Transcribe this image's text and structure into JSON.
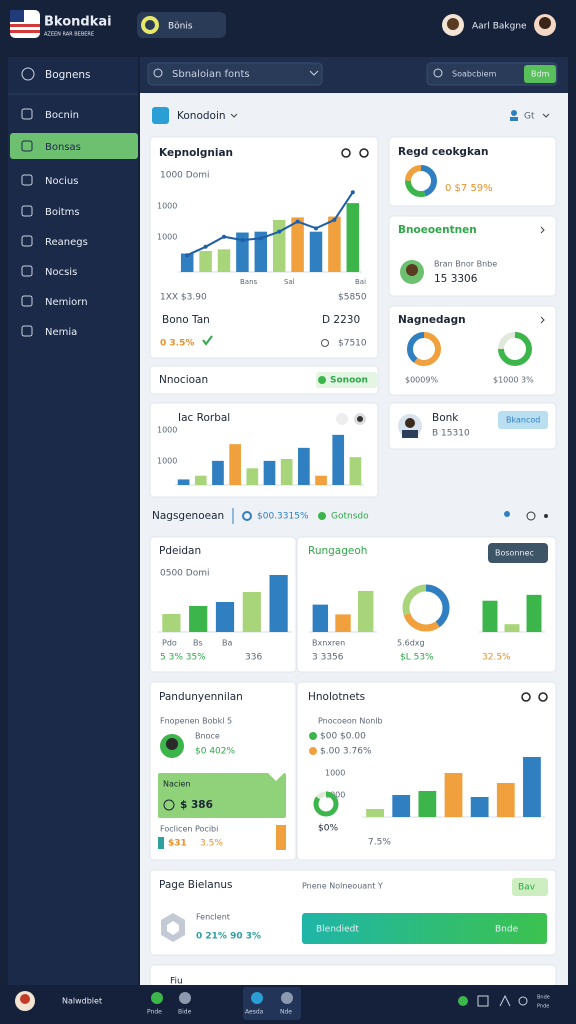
{
  "header": {
    "brand": "Bkondkai",
    "brand_sub": "AZEEN RAR BEBERE",
    "tab": "Bönis",
    "user": "Aarl Bakgne"
  },
  "sidebar": {
    "top": "Bognens",
    "items": [
      "Bocnin",
      "Bonsas",
      "Nocius",
      "Boitms",
      "Reanegs",
      "Nocsis",
      "Nemiorn",
      "Nemia"
    ]
  },
  "search": {
    "placeholder": "Sbnaloian fonts",
    "right_placeholder": "Soabcbiem",
    "button": "Bdm"
  },
  "toolbar": {
    "title": "Konodoin",
    "right": "Gt"
  },
  "card1": {
    "title": "Kepnolgnian",
    "subtitle": "1000 Domi",
    "ticks": [
      "1000",
      "1000"
    ],
    "xlabels": [
      "Bans",
      "Sal",
      "Bai"
    ],
    "rows": [
      [
        "1XX $3.90",
        "$5850"
      ],
      [
        "Bono Tan",
        "D 2230"
      ],
      [
        "0 3.5%",
        "$7510"
      ]
    ]
  },
  "regd": {
    "title": "Regd ceokgkan",
    "value": "0 $7 59%"
  },
  "bnoe": {
    "title": "Bnoeoentnen",
    "name": "Bran Bnor Bnbe",
    "value": "15 3306"
  },
  "nagn": {
    "title": "Nagnedagn",
    "labels": [
      "$0009%",
      "$1000 3%"
    ]
  },
  "nnoc": {
    "title": "Nnocioan",
    "badge": "Sonoon"
  },
  "rorbal": {
    "title": "Iac Rorbal",
    "ticks": [
      "1000",
      "1000"
    ]
  },
  "bonk": {
    "name": "Bonk",
    "value": "B 15310",
    "button": "Bkancod"
  },
  "section": {
    "title": "Nagsgenoean",
    "value": "$00.3315%",
    "tag": "Gotnsdo"
  },
  "pdeidan": {
    "title": "Pdeidan",
    "subtitle": "0500 Domi",
    "xlabels": [
      "Pdo",
      "Bs",
      "Ba"
    ],
    "footer": [
      "5 3% 35%",
      "336"
    ]
  },
  "rung": {
    "title": "Rungageoh",
    "button": "Bosonnec",
    "labels": [
      "Bxnxren",
      "3 3356",
      "5.6dxg",
      "$L 53%",
      "32.5%"
    ]
  },
  "pand": {
    "title": "Pandunyennilan",
    "sub": "Fnopenen  Bobkl 5",
    "person": "Bnoce",
    "change": "$0 402%",
    "box_title": "Nacien",
    "box_value": "$ 386",
    "foot_label": "Foclicen   Pocibi",
    "foot": [
      "$31",
      "3.5%"
    ]
  },
  "hnolo": {
    "title": "Hnolotnets",
    "sub": "Pnocoeon   Nonlb",
    "rows": [
      "$00 $0.00",
      "$.00 3.76%"
    ],
    "ticks": [
      "1000",
      "1000"
    ],
    "ring_label": "$0%",
    "foot": "7.5%"
  },
  "bielanus": {
    "title": "Page Bielanus",
    "sub": "Pnene Nolneouant Y",
    "button": "Bav",
    "label": "Fenclent",
    "value": "0 21% 90 3%",
    "bar": [
      "Blendiedt",
      "Bnde"
    ],
    "next": "Fiu"
  },
  "footer": {
    "user": "Nalwdblet",
    "tabs": [
      "Pnde",
      "Bide",
      "Aesda",
      "Nde"
    ],
    "right": [
      "Bnde",
      "Pnde"
    ]
  },
  "charts": {
    "revenue": {
      "ylim": [
        0,
        100
      ],
      "values": [
        22,
        25,
        27,
        47,
        48,
        62,
        65,
        48,
        66,
        82
      ],
      "colors": [
        "#2f7fc1",
        "#a8d57a",
        "#a8d57a",
        "#2f7fc1",
        "#2f7fc1",
        "#a8d57a",
        "#f0a03c",
        "#2f7fc1",
        "#f0a03c",
        "#3cb54a"
      ],
      "line": [
        20,
        30,
        42,
        38,
        40,
        48,
        60,
        52,
        62,
        95
      ],
      "line_color": "#1f5fa8"
    },
    "rorbal": {
      "ylim": [
        0,
        70
      ],
      "values": [
        6,
        10,
        26,
        44,
        18,
        26,
        28,
        40,
        10,
        54,
        30
      ],
      "colors": [
        "#2f7fc1",
        "#a8d57a",
        "#2f7fc1",
        "#f0a03c",
        "#a8d57a",
        "#2f7fc1",
        "#a8d57a",
        "#2f7fc1",
        "#f0a03c",
        "#2f7fc1",
        "#a8d57a"
      ]
    },
    "pdeidan": {
      "ylim": [
        0,
        60
      ],
      "values": [
        18,
        26,
        30,
        40,
        57
      ],
      "colors": [
        "#a8d57a",
        "#3cb54a",
        "#2f7fc1",
        "#a8d57a",
        "#2f7fc1"
      ]
    },
    "rung_a": {
      "ylim": [
        0,
        45
      ],
      "values": [
        28,
        18,
        42
      ],
      "colors": [
        "#2f7fc1",
        "#f0a03c",
        "#a8d57a"
      ]
    },
    "rung_b": {
      "ylim": [
        0,
        45
      ],
      "values": [
        32,
        8,
        38
      ],
      "colors": [
        "#3cb54a",
        "#a8d57a",
        "#3cb54a"
      ]
    },
    "hnolo": {
      "ylim": [
        0,
        65
      ],
      "values": [
        8,
        22,
        26,
        44,
        20,
        34,
        60
      ],
      "colors": [
        "#a8d57a",
        "#2f7fc1",
        "#3cb54a",
        "#f0a03c",
        "#2f7fc1",
        "#f0a03c",
        "#2f7fc1"
      ]
    }
  },
  "donuts": {
    "regd": {
      "values": [
        45,
        30,
        25
      ],
      "colors": [
        "#2f7fc1",
        "#3cb54a",
        "#f0a03c"
      ]
    },
    "nagn_a": {
      "values": [
        60,
        40
      ],
      "colors": [
        "#f0a03c",
        "#2f7fc1"
      ]
    },
    "nagn_b": {
      "values": [
        75,
        25
      ],
      "colors": [
        "#3cb54a",
        "#dfe8d9"
      ]
    },
    "rung": {
      "values": [
        40,
        30,
        30
      ],
      "colors": [
        "#2f7fc1",
        "#f0a03c",
        "#a8d57a"
      ]
    },
    "hnolo": {
      "values": [
        85,
        15
      ],
      "colors": [
        "#3cb54a",
        "#dfe8d9"
      ]
    }
  }
}
